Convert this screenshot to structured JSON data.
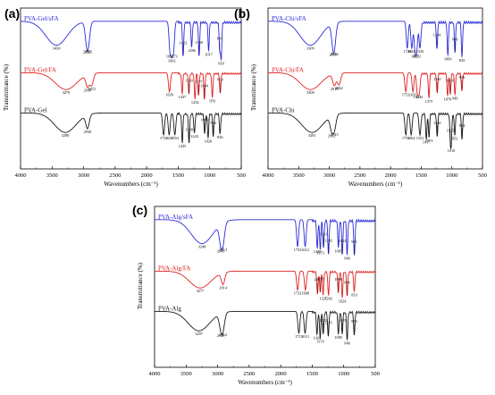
{
  "chart_data": [
    {
      "type": "line",
      "panel_label": "(a)",
      "xlabel": "Wavenumbers (cm⁻¹)",
      "ylabel": "Transmittance (%)",
      "xlim": [
        4000,
        500
      ],
      "x_ticks": [
        4000,
        3500,
        3000,
        2500,
        2000,
        1500,
        1000,
        500
      ],
      "series": [
        {
          "name": "PVA-Gel/sFA",
          "color": "#2b2bd9",
          "peaks": [
            {
              "label": "3430",
              "x": 3430
            },
            {
              "label": "2950",
              "x": 2950
            },
            {
              "label": "2925",
              "x": 2925
            },
            {
              "label": "1631",
              "x": 1631
            },
            {
              "label": "1602",
              "x": 1602
            },
            {
              "label": "1573",
              "x": 1573
            },
            {
              "label": "1422",
              "x": 1422
            },
            {
              "label": "1286",
              "x": 1286
            },
            {
              "label": "1169",
              "x": 1169
            },
            {
              "label": "1017",
              "x": 1017
            },
            {
              "label": "841",
              "x": 841
            },
            {
              "label": "818",
              "x": 818
            }
          ]
        },
        {
          "name": "PVA-Gel/FA",
          "color": "#e02020",
          "peaks": [
            {
              "label": "3279",
              "x": 3279
            },
            {
              "label": "2872",
              "x": 2872
            },
            {
              "label": "2938",
              "x": 2938
            },
            {
              "label": "1639",
              "x": 1639
            },
            {
              "label": "1330",
              "x": 1330
            },
            {
              "label": "1437",
              "x": 1437
            },
            {
              "label": "1177",
              "x": 1177
            },
            {
              "label": "1234",
              "x": 1234
            },
            {
              "label": "1084",
              "x": 1084
            },
            {
              "label": "959",
              "x": 959
            },
            {
              "label": "833",
              "x": 833
            }
          ]
        },
        {
          "name": "PVA-Gel",
          "color": "#1a1a1a",
          "peaks": [
            {
              "label": "3290",
              "x": 3290
            },
            {
              "label": "2938",
              "x": 2938
            },
            {
              "label": "1731",
              "x": 1731
            },
            {
              "label": "1643",
              "x": 1643
            },
            {
              "label": "1553",
              "x": 1553
            },
            {
              "label": "1435",
              "x": 1435
            },
            {
              "label": "1328",
              "x": 1328
            },
            {
              "label": "1243",
              "x": 1243
            },
            {
              "label": "1080",
              "x": 1080
            },
            {
              "label": "1026",
              "x": 1026
            },
            {
              "label": "944",
              "x": 944
            },
            {
              "label": "836",
              "x": 836
            }
          ]
        }
      ]
    },
    {
      "type": "line",
      "panel_label": "(b)",
      "xlabel": "Wavenumbers (cm⁻¹)",
      "ylabel": "Transmittance (%)",
      "xlim": [
        4000,
        500
      ],
      "x_ticks": [
        4000,
        3500,
        3000,
        2500,
        2000,
        1500,
        1000,
        500
      ],
      "series": [
        {
          "name": "PVA-Chi/sFA",
          "color": "#2b2bd9",
          "peaks": [
            {
              "label": "3309",
              "x": 3309
            },
            {
              "label": "2916",
              "x": 2916
            },
            {
              "label": "2939",
              "x": 2939
            },
            {
              "label": "1728",
              "x": 1728
            },
            {
              "label": "1654",
              "x": 1654
            },
            {
              "label": "1602",
              "x": 1602
            },
            {
              "label": "1573",
              "x": 1573
            },
            {
              "label": "1520",
              "x": 1520
            },
            {
              "label": "1244",
              "x": 1244
            },
            {
              "label": "1066",
              "x": 1066
            },
            {
              "label": "949",
              "x": 949
            },
            {
              "label": "835",
              "x": 835
            }
          ]
        },
        {
          "name": "PVA-Chi/FA",
          "color": "#e02020",
          "peaks": [
            {
              "label": "3309",
              "x": 3309
            },
            {
              "label": "2918",
              "x": 2918
            },
            {
              "label": "2842",
              "x": 2842
            },
            {
              "label": "1752",
              "x": 1752
            },
            {
              "label": "1635",
              "x": 1635
            },
            {
              "label": "1563",
              "x": 1563
            },
            {
              "label": "1531",
              "x": 1531
            },
            {
              "label": "1375",
              "x": 1375
            },
            {
              "label": "1240",
              "x": 1240
            },
            {
              "label": "1070",
              "x": 1070
            },
            {
              "label": "1026",
              "x": 1026
            },
            {
              "label": "949",
              "x": 949
            },
            {
              "label": "836",
              "x": 836
            }
          ]
        },
        {
          "name": "PVA-Chi",
          "color": "#1a1a1a",
          "peaks": [
            {
              "label": "3281",
              "x": 3281
            },
            {
              "label": "2962",
              "x": 2962
            },
            {
              "label": "2915",
              "x": 2915
            },
            {
              "label": "1751",
              "x": 1751
            },
            {
              "label": "1664",
              "x": 1664
            },
            {
              "label": "1417",
              "x": 1417
            },
            {
              "label": "1521",
              "x": 1521
            },
            {
              "label": "1373",
              "x": 1373
            },
            {
              "label": "1240",
              "x": 1240
            },
            {
              "label": "1010",
              "x": 1010
            },
            {
              "label": "1025",
              "x": 1025
            },
            {
              "label": "952",
              "x": 952
            },
            {
              "label": "834",
              "x": 834
            }
          ]
        }
      ]
    },
    {
      "type": "line",
      "panel_label": "(c)",
      "xlabel": "Wavenumbers (cm⁻¹)",
      "ylabel": "Transmittance (%)",
      "xlim": [
        4000,
        500
      ],
      "x_ticks": [
        4000,
        3500,
        3000,
        2500,
        2000,
        1500,
        1000,
        500
      ],
      "series": [
        {
          "name": "PVA-Alg/sFA",
          "color": "#2b2bd9",
          "peaks": [
            {
              "label": "3248",
              "x": 3248
            },
            {
              "label": "2949",
              "x": 2949
            },
            {
              "label": "2913",
              "x": 2913
            },
            {
              "label": "1732",
              "x": 1732
            },
            {
              "label": "1612",
              "x": 1612
            },
            {
              "label": "1420",
              "x": 1420
            },
            {
              "label": "1321",
              "x": 1321
            },
            {
              "label": "1373",
              "x": 1373
            },
            {
              "label": "1242",
              "x": 1242
            },
            {
              "label": "1085",
              "x": 1085
            },
            {
              "label": "1023",
              "x": 1023
            },
            {
              "label": "946",
              "x": 946
            },
            {
              "label": "831",
              "x": 831
            }
          ]
        },
        {
          "name": "PVA-Alg/FA",
          "color": "#e02020",
          "peaks": [
            {
              "label": "3277",
              "x": 3277
            },
            {
              "label": "2914",
              "x": 2914
            },
            {
              "label": "1732",
              "x": 1732
            },
            {
              "label": "1608",
              "x": 1608
            },
            {
              "label": "1417",
              "x": 1417
            },
            {
              "label": "1327",
              "x": 1327
            },
            {
              "label": "1373",
              "x": 1373
            },
            {
              "label": "1242",
              "x": 1242
            },
            {
              "label": "1086",
              "x": 1086
            },
            {
              "label": "1024",
              "x": 1024
            },
            {
              "label": "946",
              "x": 946
            },
            {
              "label": "833",
              "x": 833
            }
          ]
        },
        {
          "name": "PVA-Alg",
          "color": "#1a1a1a",
          "peaks": [
            {
              "label": "3297",
              "x": 3297
            },
            {
              "label": "2949",
              "x": 2949
            },
            {
              "label": "2912",
              "x": 2912
            },
            {
              "label": "1712",
              "x": 1712
            },
            {
              "label": "1613",
              "x": 1613
            },
            {
              "label": "1424",
              "x": 1424
            },
            {
              "label": "1325",
              "x": 1325
            },
            {
              "label": "1374",
              "x": 1374
            },
            {
              "label": "1245",
              "x": 1245
            },
            {
              "label": "1085",
              "x": 1085
            },
            {
              "label": "1025",
              "x": 1025
            },
            {
              "label": "946",
              "x": 946
            },
            {
              "label": "833",
              "x": 833
            }
          ]
        }
      ]
    }
  ]
}
